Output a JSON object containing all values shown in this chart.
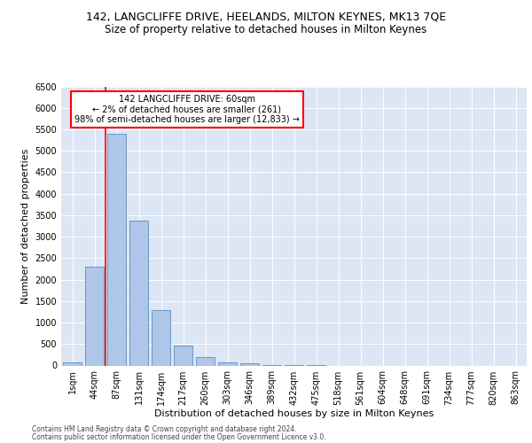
{
  "title": "142, LANGCLIFFE DRIVE, HEELANDS, MILTON KEYNES, MK13 7QE",
  "subtitle": "Size of property relative to detached houses in Milton Keynes",
  "xlabel": "Distribution of detached houses by size in Milton Keynes",
  "ylabel": "Number of detached properties",
  "categories": [
    "1sqm",
    "44sqm",
    "87sqm",
    "131sqm",
    "174sqm",
    "217sqm",
    "260sqm",
    "303sqm",
    "346sqm",
    "389sqm",
    "432sqm",
    "475sqm",
    "518sqm",
    "561sqm",
    "604sqm",
    "648sqm",
    "691sqm",
    "734sqm",
    "777sqm",
    "820sqm",
    "863sqm"
  ],
  "values": [
    75,
    2300,
    5400,
    3370,
    1290,
    470,
    190,
    80,
    45,
    5,
    3,
    2,
    0,
    0,
    0,
    0,
    0,
    0,
    0,
    0,
    0
  ],
  "bar_color": "#aec6e8",
  "bar_edge_color": "#5a8fc4",
  "property_line_color": "red",
  "property_line_x": 1.5,
  "annotation_line1": "142 LANGCLIFFE DRIVE: 60sqm",
  "annotation_line2": "← 2% of detached houses are smaller (261)",
  "annotation_line3": "98% of semi-detached houses are larger (12,833) →",
  "annotation_box_facecolor": "white",
  "annotation_box_edgecolor": "red",
  "bg_color": "#dce6f5",
  "ylim_max": 6500,
  "yticks": [
    0,
    500,
    1000,
    1500,
    2000,
    2500,
    3000,
    3500,
    4000,
    4500,
    5000,
    5500,
    6000,
    6500
  ],
  "footer_line1": "Contains HM Land Registry data © Crown copyright and database right 2024.",
  "footer_line2": "Contains public sector information licensed under the Open Government Licence v3.0.",
  "title_fontsize": 9,
  "subtitle_fontsize": 8.5,
  "ylabel_fontsize": 8,
  "xlabel_fontsize": 8,
  "tick_fontsize": 7,
  "footer_fontsize": 5.5
}
